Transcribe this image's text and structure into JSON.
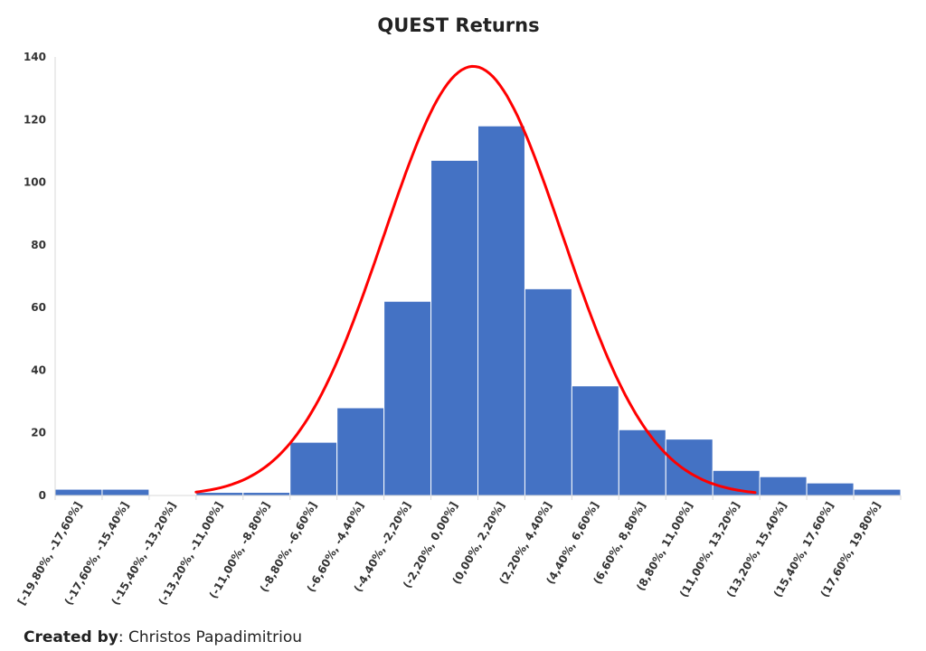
{
  "chart_data": {
    "type": "bar",
    "title": "QUEST Returns",
    "xlabel": "",
    "ylabel": "",
    "categories": [
      "[-19,80%, -17,60%]",
      "(-17,60%, -15,40%]",
      "(-15,40%, -13,20%]",
      "(-13,20%, -11,00%]",
      "(-11,00%, -8,80%]",
      "(-8,80%, -6,60%]",
      "(-6,60%, -4,40%]",
      "(-4,40%, -2,20%]",
      "(-2,20%, 0,00%]",
      "(0,00%, 2,20%]",
      "(2,20%, 4,40%]",
      "(4,40%, 6,60%]",
      "(6,60%, 8,80%]",
      "(8,80%, 11,00%]",
      "(11,00%, 13,20%]",
      "(13,20%, 15,40%]",
      "(15,40%, 17,60%]",
      "(17,60%, 19,80%]"
    ],
    "values": [
      2,
      2,
      0,
      1,
      1,
      17,
      28,
      62,
      107,
      118,
      66,
      35,
      21,
      18,
      8,
      6,
      4,
      2
    ],
    "ylim": [
      0,
      140
    ],
    "yticks": [
      0,
      20,
      40,
      60,
      80,
      100,
      120,
      140
    ],
    "bar_color": "#4472C4",
    "curve": {
      "type": "normal-fit",
      "color": "#FF0000",
      "peak_value": 137,
      "mean_category_index": 8.9,
      "sigma_in_categories": 1.9,
      "from_category_index": 3,
      "to_category_index": 14.9
    },
    "grid": false,
    "legend": "none"
  },
  "footer": {
    "credit_label": "Created by",
    "credit_separator": ": ",
    "credit_name": "Christos Papadimitriou"
  }
}
